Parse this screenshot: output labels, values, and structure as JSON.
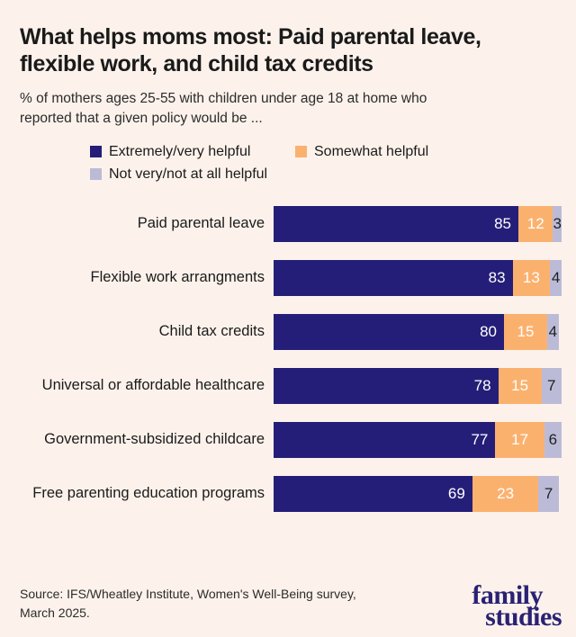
{
  "page": {
    "colors": {
      "background": "#fcf2eb",
      "brand_navy": "#292274",
      "text_dark": "#1a1a1a"
    }
  },
  "header": {
    "title": "What helps moms most: Paid parental leave,\nflexible work, and child tax credits",
    "subtitle": "% of mothers ages 25-55 with children under age 18 at home who\nreported that a given policy would be ..."
  },
  "chart_data": {
    "type": "bar",
    "stacked": true,
    "orientation": "horizontal",
    "title": "What helps moms most: Paid parental leave, flexible work, and child tax credits",
    "xlabel": "",
    "ylabel": "",
    "xlim": [
      0,
      100
    ],
    "grid": false,
    "legend_position": "top",
    "value_labels": "inside",
    "categories": [
      "Paid parental leave",
      "Flexible work arrangments",
      "Child tax credits",
      "Universal or affordable healthcare",
      "Government-subsidized childcare",
      "Free parenting education programs"
    ],
    "series": [
      {
        "name": "Extremely/very helpful",
        "color": "#251e78",
        "label_color": "#ffffff",
        "values": [
          85,
          83,
          80,
          78,
          77,
          69
        ]
      },
      {
        "name": "Somewhat helpful",
        "color": "#fbb16e",
        "label_color": "#ffffff",
        "values": [
          12,
          13,
          15,
          15,
          17,
          23
        ]
      },
      {
        "name": "Not very/not at all helpful",
        "color": "#bcbbd7",
        "label_color": "#1f1f1f",
        "values": [
          3,
          4,
          4,
          7,
          6,
          7
        ]
      }
    ]
  },
  "footer": {
    "source": "Source: IFS/Wheatley Institute, Women's Well-Being survey,\nMarch 2025.",
    "logo_line1": "family",
    "logo_line2": "studies"
  }
}
